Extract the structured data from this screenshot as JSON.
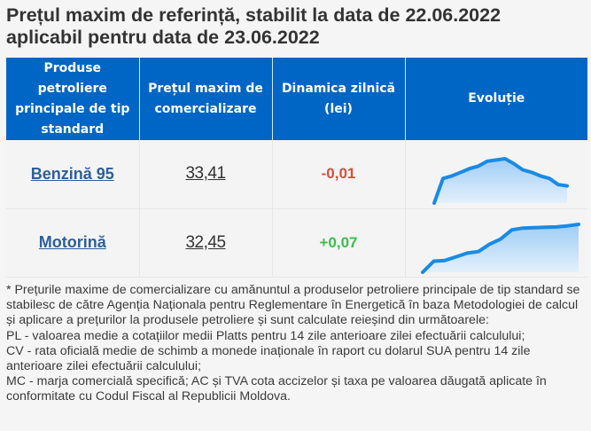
{
  "header": {
    "title_line1": "Prețul maxim de referință, stabilit la data de 22.06.2022",
    "title_line2": "aplicabil pentru data de 23.06.2022"
  },
  "table": {
    "columns": [
      "Produse petroliere principale de tip standard",
      "Prețul maxim de comercializare",
      "Dinamica zilnică (lei)",
      "Evoluție"
    ],
    "rows": [
      {
        "product": "Benzină 95",
        "price": "33,41",
        "delta": "-0,01",
        "trend": [
          0,
          10,
          11,
          12.5,
          14,
          15,
          17,
          17.5,
          18,
          16,
          13.5,
          12.5,
          11,
          10,
          7.5,
          7
        ]
      },
      {
        "product": "Motorină",
        "price": "32,45",
        "delta": "+0,07",
        "trend": [
          0,
          3,
          3.2,
          4.2,
          5.2,
          5.6,
          7.6,
          9,
          11.5,
          12,
          12.1,
          12.2,
          12.3,
          12.6,
          13
        ]
      }
    ]
  },
  "colors": {
    "header_bg": "#0066c6",
    "down": "#d9503b",
    "up": "#3cbf4a",
    "spark_line": "#1a8ae6",
    "link": "#2d5f9a"
  },
  "footnote": {
    "lines": [
      "* Prețurile maxime de comercializare cu amănuntul a produselor petroliere principale de tip standard se stabilesc de către Agenția Naționala pentru Reglementare în Energetică în baza Metodologiei de calcul și aplicare a prețurilor la produsele petroliere și sunt calculate reieșind din următoarele:",
      "PL - valoarea medie a cotațiilor medii Platts pentru 14 zile anterioare zilei efectuării calculului;",
      "CV - rata oficială medie de schimb a monede inaționale în raport cu dolarul SUA pentru 14 zile anterioare zilei efectuării calculului;",
      "MC - marja comercială specifică; AC și TVA cota accizelor și taxa pe valoarea dăugată aplicate în conformitate cu Codul Fiscal al Republicii Moldova."
    ]
  }
}
